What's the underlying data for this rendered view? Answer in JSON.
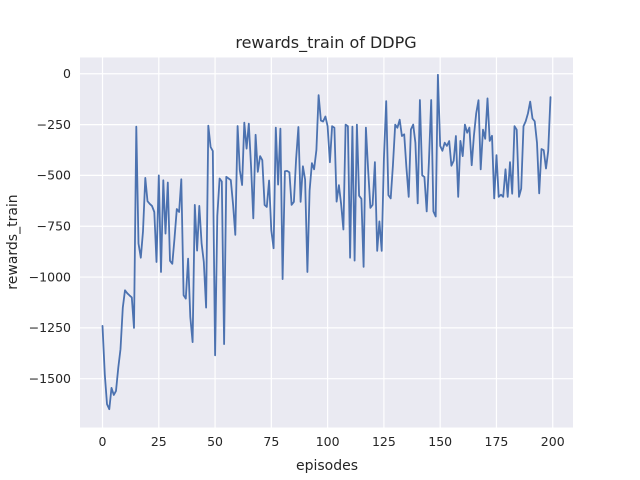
{
  "chart_data": {
    "type": "line",
    "title": "rewards_train of DDPG",
    "xlabel": "episodes",
    "ylabel": "rewards_train",
    "x_start": 0,
    "values": [
      -1240,
      -1480,
      -1625,
      -1650,
      -1545,
      -1580,
      -1560,
      -1445,
      -1355,
      -1150,
      -1065,
      -1080,
      -1090,
      -1100,
      -1250,
      -260,
      -835,
      -905,
      -775,
      -512,
      -627,
      -640,
      -650,
      -680,
      -926,
      -500,
      -975,
      -524,
      -786,
      -535,
      -920,
      -935,
      -810,
      -665,
      -680,
      -519,
      -1089,
      -1106,
      -909,
      -1196,
      -1320,
      -645,
      -870,
      -650,
      -835,
      -925,
      -1150,
      -255,
      -360,
      -380,
      -1385,
      -700,
      -515,
      -530,
      -1330,
      -507,
      -515,
      -523,
      -645,
      -792,
      -257,
      -474,
      -547,
      -240,
      -368,
      -245,
      -460,
      -711,
      -300,
      -482,
      -405,
      -425,
      -645,
      -655,
      -525,
      -770,
      -858,
      -265,
      -545,
      -270,
      -1010,
      -480,
      -478,
      -485,
      -645,
      -630,
      -420,
      -262,
      -630,
      -455,
      -520,
      -975,
      -575,
      -440,
      -470,
      -375,
      -105,
      -230,
      -235,
      -210,
      -258,
      -435,
      -258,
      -266,
      -629,
      -548,
      -640,
      -766,
      -250,
      -258,
      -905,
      -260,
      -919,
      -250,
      -600,
      -615,
      -950,
      -265,
      -470,
      -660,
      -645,
      -435,
      -871,
      -726,
      -871,
      -419,
      -135,
      -597,
      -613,
      -452,
      -250,
      -266,
      -226,
      -306,
      -298,
      -460,
      -605,
      -274,
      -250,
      -340,
      -637,
      -129,
      -500,
      -508,
      -677,
      -435,
      -129,
      -677,
      -702,
      -5,
      -355,
      -379,
      -339,
      -355,
      -331,
      -452,
      -427,
      -306,
      -605,
      -330,
      -405,
      -250,
      -290,
      -265,
      -450,
      -305,
      -195,
      -130,
      -470,
      -275,
      -320,
      -121,
      -330,
      -305,
      -613,
      -400,
      -605,
      -595,
      -605,
      -470,
      -605,
      -435,
      -590,
      -258,
      -275,
      -605,
      -565,
      -258,
      -234,
      -194,
      -137,
      -220,
      -234,
      -340,
      -588,
      -370,
      -376,
      -466,
      -380,
      -115
    ],
    "xticks": [
      0,
      25,
      50,
      75,
      100,
      125,
      150,
      175,
      200
    ],
    "yticks": [
      0,
      -250,
      -500,
      -750,
      -1000,
      -1250,
      -1500
    ],
    "xlim": [
      -10,
      209
    ],
    "ylim": [
      -1740,
      80
    ],
    "grid": true,
    "legend_visible": false,
    "line_color": "#4c72b0",
    "axes_bg_color": "#eaeaf2",
    "grid_color": "#ffffff",
    "text_color": "#262626",
    "figure_bg_color": "#ffffff"
  }
}
